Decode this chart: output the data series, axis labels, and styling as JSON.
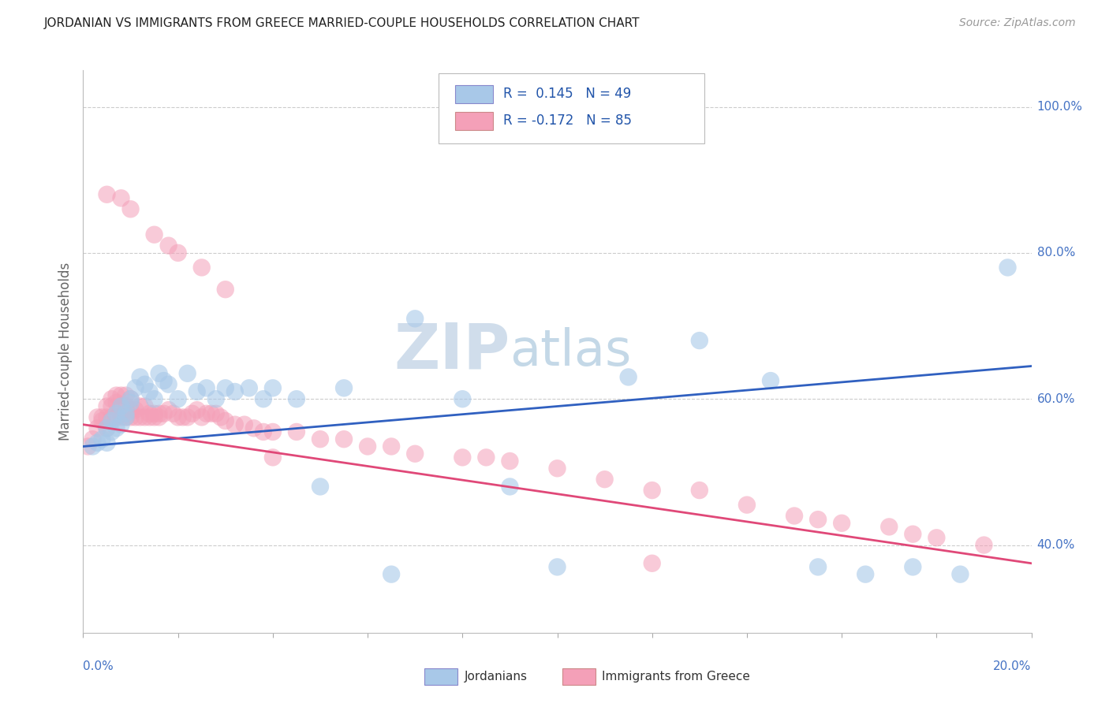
{
  "title": "JORDANIAN VS IMMIGRANTS FROM GREECE MARRIED-COUPLE HOUSEHOLDS CORRELATION CHART",
  "source": "Source: ZipAtlas.com",
  "ylabel": "Married-couple Households",
  "jordanian_color": "#a8c8e8",
  "greece_color": "#f4a0b8",
  "blue_line_color": "#3060c0",
  "pink_line_color": "#e04878",
  "watermark_color": "#d8e8f0",
  "background_color": "#ffffff",
  "grid_color": "#cccccc",
  "xmin": 0.0,
  "xmax": 0.2,
  "ymin": 0.28,
  "ymax": 1.05,
  "R_jordanian": 0.145,
  "N_jordanian": 49,
  "R_greece": -0.172,
  "N_greece": 85,
  "blue_line_x0": 0.0,
  "blue_line_y0": 0.535,
  "blue_line_x1": 0.2,
  "blue_line_y1": 0.645,
  "pink_line_x0": 0.0,
  "pink_line_y0": 0.565,
  "pink_line_x1": 0.2,
  "pink_line_y1": 0.375,
  "jordanian_x": [
    0.002,
    0.003,
    0.004,
    0.005,
    0.005,
    0.006,
    0.006,
    0.007,
    0.007,
    0.008,
    0.008,
    0.009,
    0.009,
    0.01,
    0.01,
    0.011,
    0.012,
    0.013,
    0.014,
    0.015,
    0.016,
    0.017,
    0.018,
    0.02,
    0.022,
    0.024,
    0.026,
    0.028,
    0.03,
    0.032,
    0.035,
    0.038,
    0.04,
    0.045,
    0.05,
    0.055,
    0.065,
    0.07,
    0.08,
    0.09,
    0.1,
    0.115,
    0.13,
    0.145,
    0.155,
    0.165,
    0.175,
    0.185,
    0.195
  ],
  "jordanian_y": [
    0.535,
    0.54,
    0.545,
    0.54,
    0.56,
    0.555,
    0.57,
    0.56,
    0.58,
    0.565,
    0.59,
    0.575,
    0.58,
    0.595,
    0.6,
    0.615,
    0.63,
    0.62,
    0.61,
    0.6,
    0.635,
    0.625,
    0.62,
    0.6,
    0.635,
    0.61,
    0.615,
    0.6,
    0.615,
    0.61,
    0.615,
    0.6,
    0.615,
    0.6,
    0.48,
    0.615,
    0.36,
    0.71,
    0.6,
    0.48,
    0.37,
    0.63,
    0.68,
    0.625,
    0.37,
    0.36,
    0.37,
    0.36,
    0.78
  ],
  "greece_x": [
    0.001,
    0.002,
    0.003,
    0.003,
    0.004,
    0.004,
    0.005,
    0.005,
    0.005,
    0.006,
    0.006,
    0.006,
    0.007,
    0.007,
    0.007,
    0.008,
    0.008,
    0.008,
    0.009,
    0.009,
    0.009,
    0.01,
    0.01,
    0.01,
    0.011,
    0.011,
    0.012,
    0.012,
    0.013,
    0.013,
    0.014,
    0.014,
    0.015,
    0.015,
    0.016,
    0.016,
    0.017,
    0.018,
    0.019,
    0.02,
    0.021,
    0.022,
    0.023,
    0.024,
    0.025,
    0.026,
    0.027,
    0.028,
    0.029,
    0.03,
    0.032,
    0.034,
    0.036,
    0.038,
    0.04,
    0.04,
    0.045,
    0.05,
    0.055,
    0.06,
    0.065,
    0.07,
    0.08,
    0.085,
    0.09,
    0.1,
    0.11,
    0.12,
    0.13,
    0.14,
    0.15,
    0.155,
    0.16,
    0.17,
    0.175,
    0.18,
    0.19,
    0.005,
    0.008,
    0.01,
    0.015,
    0.018,
    0.02,
    0.025,
    0.03,
    0.12
  ],
  "greece_y": [
    0.535,
    0.545,
    0.56,
    0.575,
    0.575,
    0.57,
    0.575,
    0.56,
    0.59,
    0.575,
    0.59,
    0.6,
    0.575,
    0.595,
    0.605,
    0.575,
    0.59,
    0.605,
    0.575,
    0.59,
    0.605,
    0.575,
    0.585,
    0.6,
    0.575,
    0.585,
    0.575,
    0.59,
    0.575,
    0.59,
    0.58,
    0.575,
    0.58,
    0.575,
    0.575,
    0.58,
    0.58,
    0.585,
    0.58,
    0.575,
    0.575,
    0.575,
    0.58,
    0.585,
    0.575,
    0.58,
    0.58,
    0.58,
    0.575,
    0.57,
    0.565,
    0.565,
    0.56,
    0.555,
    0.555,
    0.52,
    0.555,
    0.545,
    0.545,
    0.535,
    0.535,
    0.525,
    0.52,
    0.52,
    0.515,
    0.505,
    0.49,
    0.475,
    0.475,
    0.455,
    0.44,
    0.435,
    0.43,
    0.425,
    0.415,
    0.41,
    0.4,
    0.88,
    0.875,
    0.86,
    0.825,
    0.81,
    0.8,
    0.78,
    0.75,
    0.375
  ]
}
